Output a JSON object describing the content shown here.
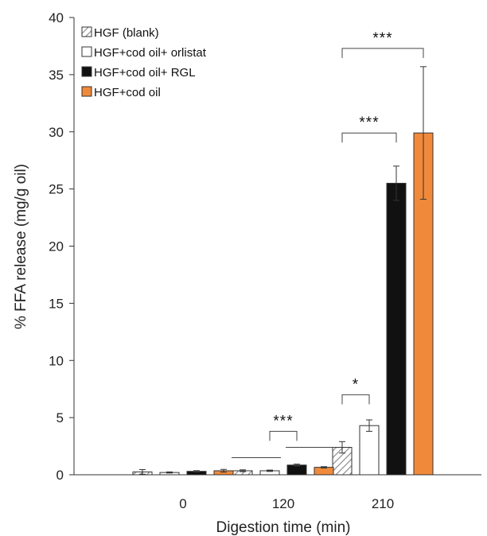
{
  "chart_data": {
    "type": "bar",
    "xlabel": "Digestion time (min)",
    "ylabel": "% FFA release (mg/g oil)",
    "ylim": [
      0,
      40
    ],
    "yticks": [
      "0",
      "5",
      "10",
      "15",
      "20",
      "25",
      "30",
      "35",
      "40"
    ],
    "categories": [
      "0",
      "120",
      "210"
    ],
    "legend_position": "top-left",
    "series": [
      {
        "name": "HGF (blank)",
        "color": "#c8c8c8",
        "pattern": "hatched",
        "values": [
          0.25,
          0.35,
          2.4
        ],
        "errors": [
          0.2,
          0.08,
          0.5
        ]
      },
      {
        "name": "HGF+cod oil+ orlistat",
        "color": "#ffffff",
        "pattern": "solid",
        "values": [
          0.2,
          0.35,
          4.3
        ],
        "errors": [
          0.05,
          0.06,
          0.5
        ]
      },
      {
        "name": "HGF+cod oil+ RGL",
        "color": "#111111",
        "pattern": "solid",
        "values": [
          0.3,
          0.85,
          25.5
        ],
        "errors": [
          0.06,
          0.08,
          1.5
        ]
      },
      {
        "name": "HGF+cod oil",
        "color": "#f08a3a",
        "pattern": "solid",
        "values": [
          0.35,
          0.65,
          29.9
        ],
        "errors": [
          0.12,
          0.06,
          5.8
        ]
      }
    ],
    "annotations": [
      {
        "label": "***",
        "group": 1,
        "kind": "bracket",
        "from_series": 1,
        "to_series": 2,
        "y": 3.8
      },
      {
        "label": "",
        "group": 1,
        "kind": "line",
        "from_series": 0,
        "to_series": 1,
        "y": 1.5
      },
      {
        "label": "",
        "group": 1,
        "kind": "line",
        "from_series": 2,
        "to_series": 3,
        "y": 2.4
      },
      {
        "label": "*",
        "group": 2,
        "kind": "bracket",
        "from_series": 0,
        "to_series": 1,
        "y": 7.0
      },
      {
        "label": "***",
        "group": 2,
        "kind": "bracket",
        "from_series": 0,
        "to_series": 2,
        "y": 29.9
      },
      {
        "label": "***",
        "group": 2,
        "kind": "bracket",
        "from_series": 0,
        "to_series": 3,
        "y": 37.3
      }
    ]
  }
}
